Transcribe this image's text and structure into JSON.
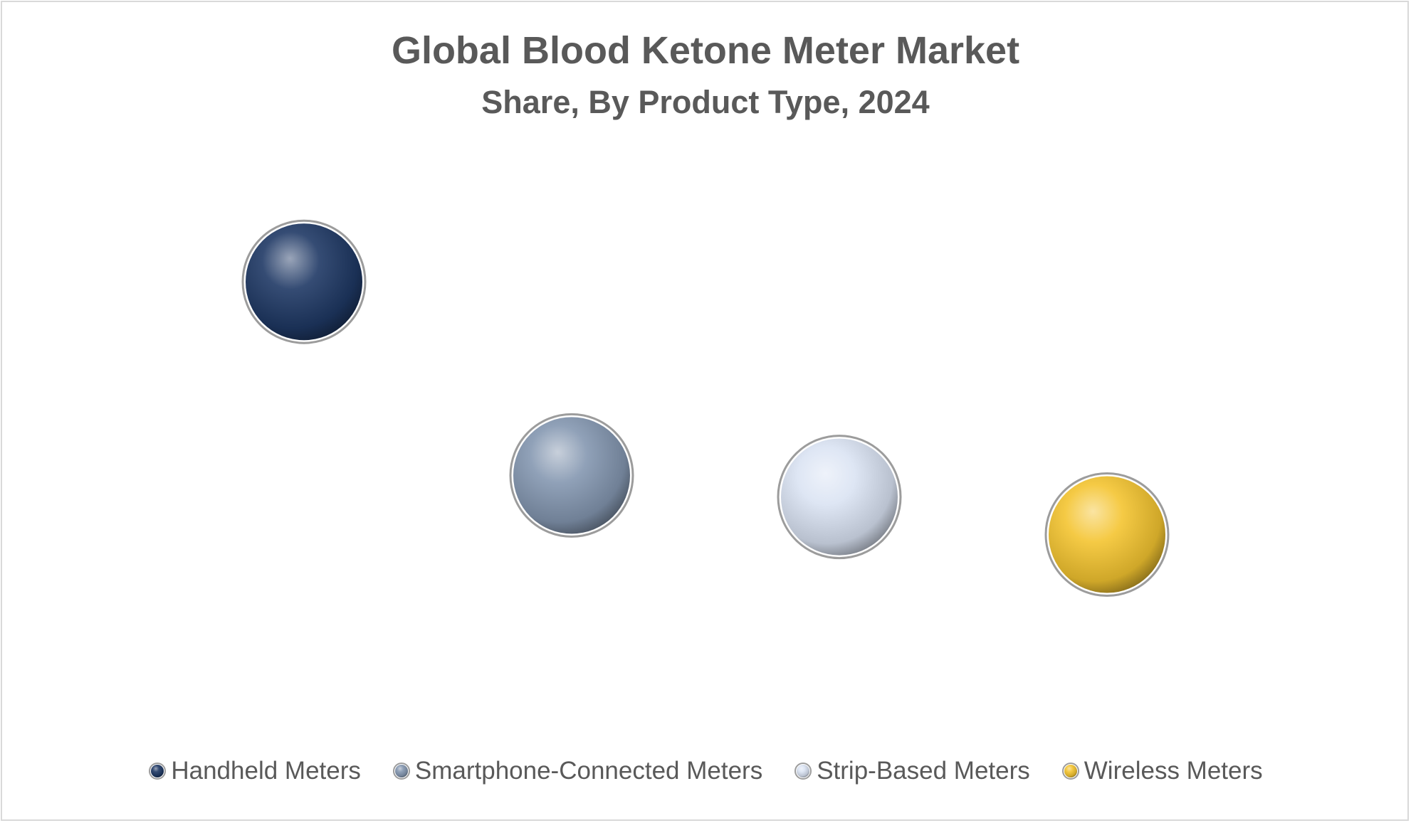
{
  "chart_data": {
    "type": "scatter",
    "title": "Global Blood Ketone Meter Market",
    "subtitle": "Share, By Product Type, 2024",
    "xlabel": "",
    "ylabel": "",
    "grid": false,
    "axes_visible": false,
    "legend_position": "bottom",
    "ylim": [
      0,
      50
    ],
    "series": [
      {
        "name": "Handheld Meters",
        "x": 1,
        "y": 40,
        "color": "#1f3864"
      },
      {
        "name": "Smartphone-Connected Meters",
        "x": 2,
        "y": 22,
        "color": "#8497b0"
      },
      {
        "name": "Strip-Based Meters",
        "x": 3,
        "y": 20,
        "color": "#dae3f3"
      },
      {
        "name": "Wireless Meters",
        "x": 4,
        "y": 16.5,
        "color": "#f4c430"
      }
    ]
  }
}
